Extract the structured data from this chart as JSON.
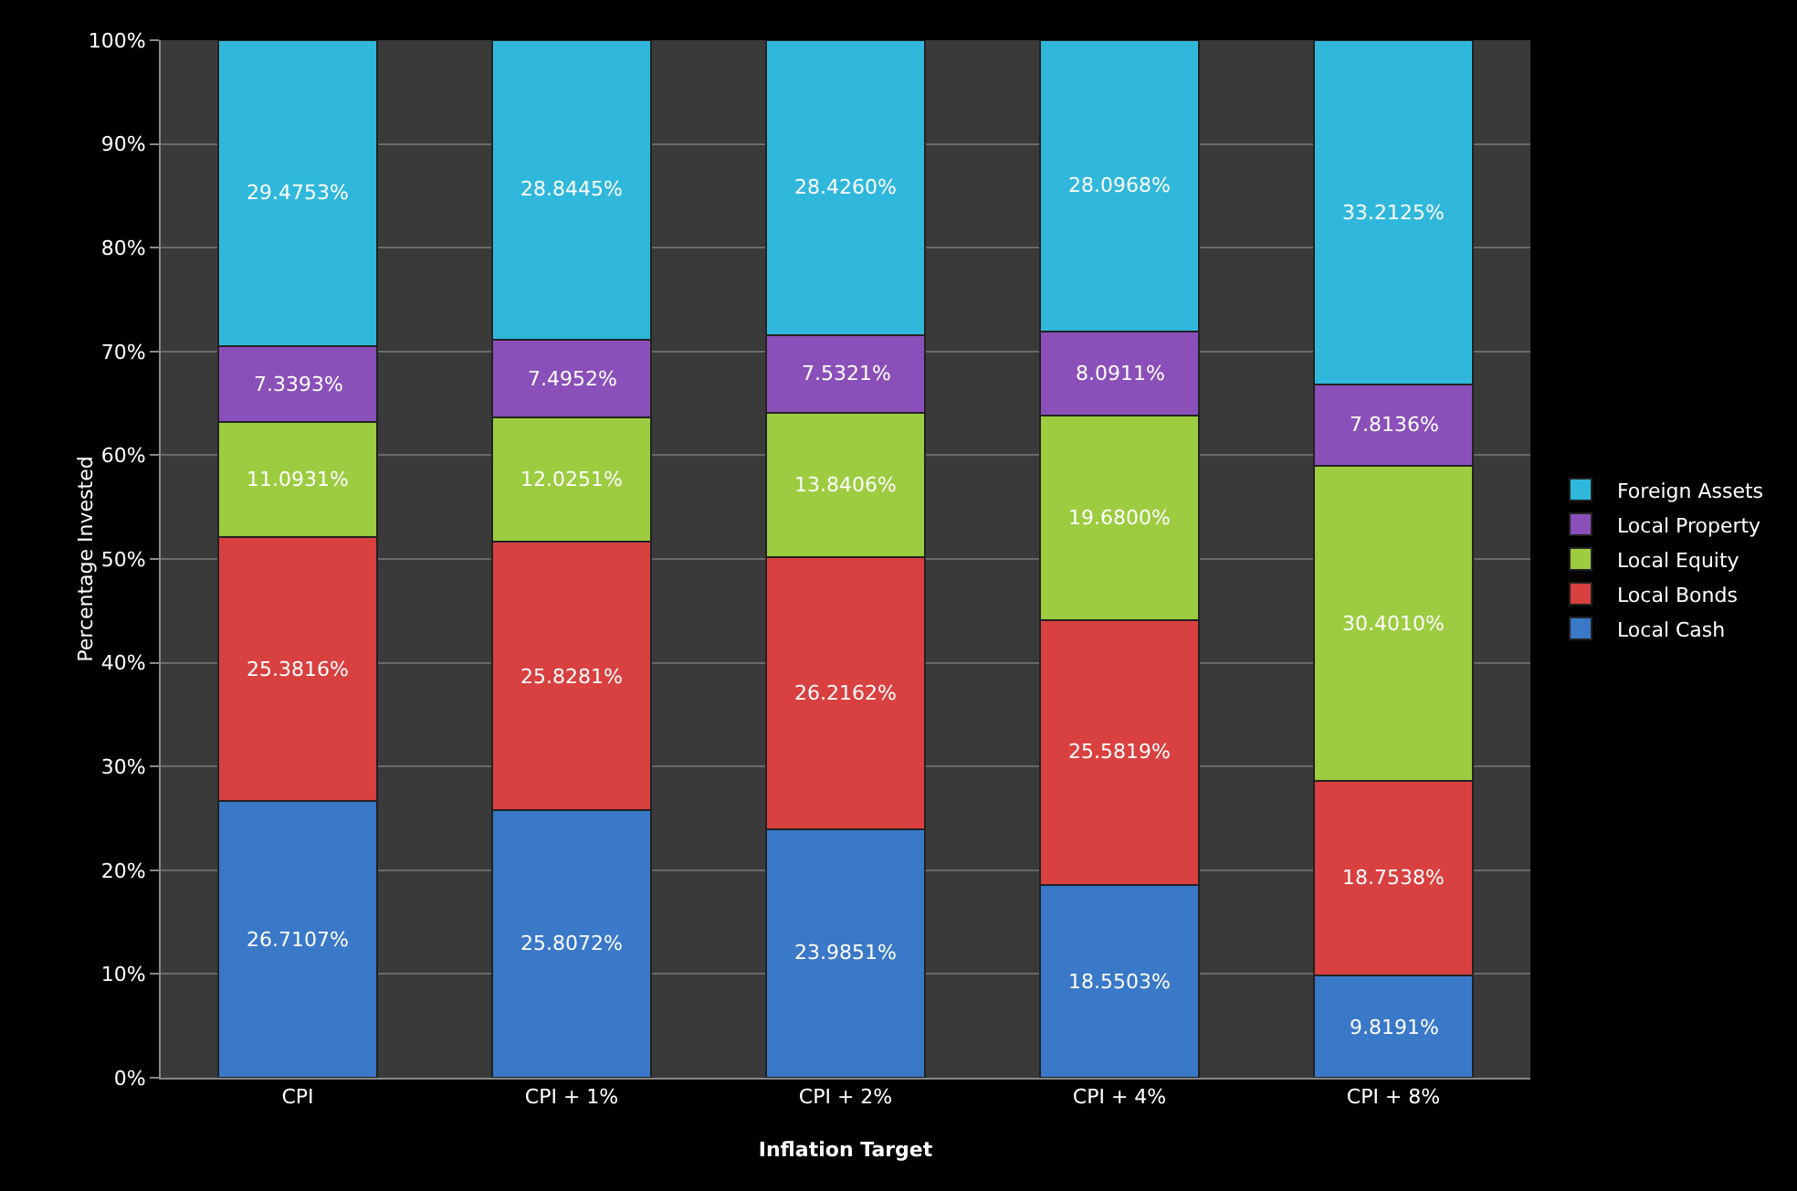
{
  "chart_data": {
    "type": "bar",
    "stacked": true,
    "xlabel": "Inflation Target",
    "ylabel": "Percentage Invested",
    "categories": [
      "CPI",
      "CPI + 1%",
      "CPI + 2%",
      "CPI + 4%",
      "CPI + 8%"
    ],
    "series": [
      {
        "name": "Local Cash",
        "color": "#3a78c8",
        "values": [
          26.7107,
          25.8072,
          23.9851,
          18.5503,
          9.8191
        ],
        "value_labels": [
          "26.7107%",
          "25.8072%",
          "23.9851%",
          "18.5503%",
          "9.8191%"
        ]
      },
      {
        "name": "Local Bonds",
        "color": "#d94040",
        "values": [
          25.3816,
          25.8281,
          26.2162,
          25.5819,
          18.7538
        ],
        "value_labels": [
          "25.3816%",
          "25.8281%",
          "26.2162%",
          "25.5819%",
          "18.7538%"
        ]
      },
      {
        "name": "Local Equity",
        "color": "#9ccc40",
        "values": [
          11.0931,
          12.0251,
          13.8406,
          19.68,
          30.401
        ],
        "value_labels": [
          "11.0931%",
          "12.0251%",
          "13.8406%",
          "19.6800%",
          "30.4010%"
        ]
      },
      {
        "name": "Local Property",
        "color": "#8a4fb8",
        "values": [
          7.3393,
          7.4952,
          7.5321,
          8.0911,
          7.8136
        ],
        "value_labels": [
          "7.3393%",
          "7.4952%",
          "7.5321%",
          "8.0911%",
          "7.8136%"
        ]
      },
      {
        "name": "Foreign Assets",
        "color": "#30b8dc",
        "values": [
          29.4753,
          28.8445,
          28.426,
          28.0968,
          33.2125
        ],
        "value_labels": [
          "29.4753%",
          "28.8445%",
          "28.4260%",
          "28.0968%",
          "33.2125%"
        ]
      }
    ],
    "ylim": [
      0,
      100
    ],
    "yticks": [
      {
        "value": 0,
        "label": "0%"
      },
      {
        "value": 10,
        "label": "10%"
      },
      {
        "value": 20,
        "label": "20%"
      },
      {
        "value": 30,
        "label": "30%"
      },
      {
        "value": 40,
        "label": "40%"
      },
      {
        "value": 50,
        "label": "50%"
      },
      {
        "value": 60,
        "label": "60%"
      },
      {
        "value": 70,
        "label": "70%"
      },
      {
        "value": 80,
        "label": "80%"
      },
      {
        "value": 90,
        "label": "90%"
      },
      {
        "value": 100,
        "label": "100%"
      }
    ],
    "grid": "y",
    "legend": "right"
  }
}
